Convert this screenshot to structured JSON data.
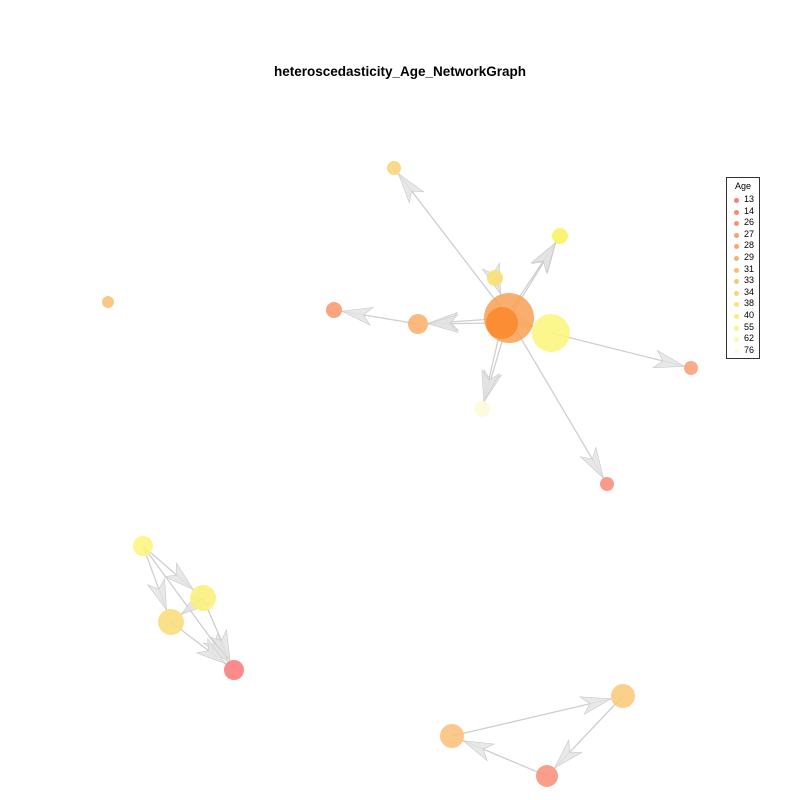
{
  "title": "heteroscedasticity_Age_NetworkGraph",
  "legend": {
    "title": "Age",
    "entries": [
      {
        "label": "13",
        "color": "#f97b7b"
      },
      {
        "label": "14",
        "color": "#f98577"
      },
      {
        "label": "26",
        "color": "#f99273"
      },
      {
        "label": "27",
        "color": "#f99f70"
      },
      {
        "label": "28",
        "color": "#f9a86d"
      },
      {
        "label": "29",
        "color": "#f9b16c"
      },
      {
        "label": "31",
        "color": "#f9bc70"
      },
      {
        "label": "33",
        "color": "#f9c874"
      },
      {
        "label": "34",
        "color": "#f9d479"
      },
      {
        "label": "38",
        "color": "#f9e37a"
      },
      {
        "label": "40",
        "color": "#f9ef7a"
      },
      {
        "label": "55",
        "color": "#fbf67c"
      },
      {
        "label": "62",
        "color": "#fcf9a8"
      },
      {
        "label": "76",
        "color": "#fdfbd8"
      }
    ]
  },
  "graph": {
    "edge_color": "#cfcfcf",
    "nodes": [
      {
        "id": "hub-dark",
        "color": "#fa8a2e"
      },
      {
        "id": "hub-large",
        "color": "#f9a35a"
      },
      {
        "id": "yellow-big",
        "color": "#fbf67c"
      },
      {
        "id": "top-left",
        "color": "#f9d479"
      },
      {
        "id": "top-right",
        "color": "#fbf35e"
      },
      {
        "id": "upper-mid",
        "color": "#f9e070"
      },
      {
        "id": "left-orange",
        "color": "#f9b16c"
      },
      {
        "id": "far-left-red",
        "color": "#f9986e"
      },
      {
        "id": "right-small",
        "color": "#f9a07a"
      },
      {
        "id": "bottom-pale",
        "color": "#fdfbd8"
      },
      {
        "id": "lower-red",
        "color": "#f98d7a"
      },
      {
        "id": "isolated",
        "color": "#f9c075"
      },
      {
        "id": "g2-yellow-top",
        "color": "#fbf67c"
      },
      {
        "id": "g2-yellow-mid",
        "color": "#fbf07a"
      },
      {
        "id": "g2-gold",
        "color": "#f9dc77"
      },
      {
        "id": "g2-red",
        "color": "#f97b7b"
      },
      {
        "id": "g3-orange-right",
        "color": "#f9c97a"
      },
      {
        "id": "g3-orange-left",
        "color": "#f9c07a"
      },
      {
        "id": "g3-red",
        "color": "#f98f7a"
      }
    ]
  }
}
